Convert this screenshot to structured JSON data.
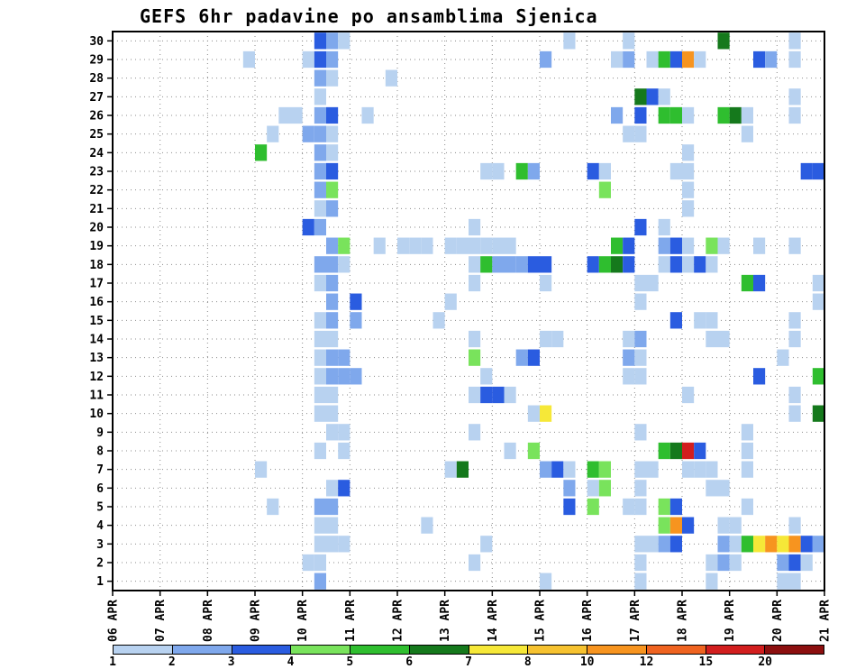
{
  "title": "GEFS 6hr padavine po ansamblima Sjenica",
  "chart_data": {
    "type": "heatmap",
    "model": "GEFS",
    "station": "Sjenica",
    "interval_hours": 6,
    "ensemble_members": 30,
    "time_steps": 60,
    "steps_per_day": 4,
    "grid": "dotted",
    "legend_position": "bottom",
    "x_tick_labels": [
      "06 APR",
      "07 APR",
      "08 APR",
      "09 APR",
      "10 APR",
      "11 APR",
      "12 APR",
      "13 APR",
      "14 APR",
      "15 APR",
      "16 APR",
      "17 APR",
      "18 APR",
      "19 APR",
      "20 APR",
      "21 APR"
    ],
    "colorbar": {
      "labels": [
        "1",
        "2",
        "3",
        "4",
        "5",
        "6",
        "7",
        "8",
        "10",
        "12",
        "15",
        "20"
      ],
      "colors": [
        "#b8d2f0",
        "#7fa8ec",
        "#2a5ce0",
        "#79e35c",
        "#2fbe2f",
        "#15791c",
        "#f6e838",
        "#f6c230",
        "#f7941f",
        "#ef6320",
        "#d21e1e",
        "#8c0f0f"
      ]
    },
    "cells": [
      [
        30,
        17,
        3
      ],
      [
        30,
        18,
        2
      ],
      [
        30,
        19,
        1
      ],
      [
        30,
        38,
        1
      ],
      [
        30,
        43,
        1
      ],
      [
        30,
        51,
        6
      ],
      [
        30,
        57,
        1
      ],
      [
        29,
        11,
        1
      ],
      [
        29,
        16,
        1
      ],
      [
        29,
        17,
        3
      ],
      [
        29,
        18,
        2
      ],
      [
        29,
        36,
        2
      ],
      [
        29,
        42,
        1
      ],
      [
        29,
        43,
        2
      ],
      [
        29,
        45,
        1
      ],
      [
        29,
        46,
        5
      ],
      [
        29,
        47,
        3
      ],
      [
        29,
        48,
        9
      ],
      [
        29,
        49,
        1
      ],
      [
        29,
        54,
        3
      ],
      [
        29,
        55,
        2
      ],
      [
        29,
        57,
        1
      ],
      [
        28,
        17,
        2
      ],
      [
        28,
        18,
        1
      ],
      [
        28,
        23,
        1
      ],
      [
        27,
        17,
        1
      ],
      [
        27,
        44,
        6
      ],
      [
        27,
        45,
        3
      ],
      [
        27,
        46,
        1
      ],
      [
        27,
        57,
        1
      ],
      [
        26,
        14,
        1
      ],
      [
        26,
        15,
        1
      ],
      [
        26,
        17,
        2
      ],
      [
        26,
        18,
        3
      ],
      [
        26,
        21,
        1
      ],
      [
        26,
        42,
        2
      ],
      [
        26,
        44,
        3
      ],
      [
        26,
        46,
        5
      ],
      [
        26,
        47,
        5
      ],
      [
        26,
        48,
        1
      ],
      [
        26,
        51,
        5
      ],
      [
        26,
        52,
        6
      ],
      [
        26,
        53,
        1
      ],
      [
        26,
        57,
        1
      ],
      [
        25,
        13,
        1
      ],
      [
        25,
        16,
        2
      ],
      [
        25,
        17,
        2
      ],
      [
        25,
        18,
        1
      ],
      [
        25,
        43,
        1
      ],
      [
        25,
        44,
        1
      ],
      [
        25,
        53,
        1
      ],
      [
        24,
        12,
        5
      ],
      [
        24,
        17,
        2
      ],
      [
        24,
        18,
        1
      ],
      [
        24,
        48,
        1
      ],
      [
        23,
        17,
        2
      ],
      [
        23,
        18,
        3
      ],
      [
        23,
        31,
        1
      ],
      [
        23,
        32,
        1
      ],
      [
        23,
        34,
        5
      ],
      [
        23,
        35,
        2
      ],
      [
        23,
        40,
        3
      ],
      [
        23,
        41,
        1
      ],
      [
        23,
        47,
        1
      ],
      [
        23,
        48,
        1
      ],
      [
        23,
        58,
        3
      ],
      [
        23,
        59,
        3
      ],
      [
        22,
        17,
        2
      ],
      [
        22,
        18,
        4
      ],
      [
        22,
        41,
        4
      ],
      [
        22,
        48,
        1
      ],
      [
        21,
        17,
        1
      ],
      [
        21,
        18,
        2
      ],
      [
        21,
        48,
        1
      ],
      [
        20,
        16,
        3
      ],
      [
        20,
        17,
        2
      ],
      [
        20,
        30,
        1
      ],
      [
        20,
        44,
        3
      ],
      [
        20,
        46,
        1
      ],
      [
        19,
        18,
        2
      ],
      [
        19,
        19,
        4
      ],
      [
        19,
        22,
        1
      ],
      [
        19,
        24,
        1
      ],
      [
        19,
        25,
        1
      ],
      [
        19,
        26,
        1
      ],
      [
        19,
        28,
        1
      ],
      [
        19,
        29,
        1
      ],
      [
        19,
        30,
        1
      ],
      [
        19,
        31,
        1
      ],
      [
        19,
        32,
        1
      ],
      [
        19,
        33,
        1
      ],
      [
        19,
        42,
        5
      ],
      [
        19,
        43,
        3
      ],
      [
        19,
        46,
        2
      ],
      [
        19,
        47,
        3
      ],
      [
        19,
        48,
        1
      ],
      [
        19,
        50,
        4
      ],
      [
        19,
        51,
        1
      ],
      [
        19,
        54,
        1
      ],
      [
        19,
        57,
        1
      ],
      [
        18,
        17,
        2
      ],
      [
        18,
        18,
        2
      ],
      [
        18,
        19,
        1
      ],
      [
        18,
        30,
        1
      ],
      [
        18,
        31,
        5
      ],
      [
        18,
        32,
        2
      ],
      [
        18,
        33,
        2
      ],
      [
        18,
        34,
        2
      ],
      [
        18,
        35,
        3
      ],
      [
        18,
        36,
        3
      ],
      [
        18,
        40,
        3
      ],
      [
        18,
        41,
        5
      ],
      [
        18,
        42,
        6
      ],
      [
        18,
        43,
        3
      ],
      [
        18,
        46,
        1
      ],
      [
        18,
        47,
        3
      ],
      [
        18,
        48,
        1
      ],
      [
        18,
        49,
        3
      ],
      [
        18,
        50,
        1
      ],
      [
        17,
        17,
        1
      ],
      [
        17,
        18,
        2
      ],
      [
        17,
        30,
        1
      ],
      [
        17,
        36,
        1
      ],
      [
        17,
        44,
        1
      ],
      [
        17,
        45,
        1
      ],
      [
        17,
        53,
        5
      ],
      [
        17,
        54,
        3
      ],
      [
        17,
        59,
        1
      ],
      [
        16,
        18,
        2
      ],
      [
        16,
        20,
        3
      ],
      [
        16,
        28,
        1
      ],
      [
        16,
        44,
        1
      ],
      [
        16,
        59,
        1
      ],
      [
        15,
        17,
        1
      ],
      [
        15,
        18,
        2
      ],
      [
        15,
        20,
        2
      ],
      [
        15,
        27,
        1
      ],
      [
        15,
        47,
        3
      ],
      [
        15,
        49,
        1
      ],
      [
        15,
        50,
        1
      ],
      [
        15,
        57,
        1
      ],
      [
        14,
        17,
        1
      ],
      [
        14,
        18,
        1
      ],
      [
        14,
        30,
        1
      ],
      [
        14,
        36,
        1
      ],
      [
        14,
        37,
        1
      ],
      [
        14,
        43,
        1
      ],
      [
        14,
        44,
        2
      ],
      [
        14,
        50,
        1
      ],
      [
        14,
        51,
        1
      ],
      [
        14,
        57,
        1
      ],
      [
        13,
        17,
        1
      ],
      [
        13,
        18,
        2
      ],
      [
        13,
        19,
        2
      ],
      [
        13,
        30,
        4
      ],
      [
        13,
        34,
        2
      ],
      [
        13,
        35,
        3
      ],
      [
        13,
        43,
        2
      ],
      [
        13,
        44,
        1
      ],
      [
        13,
        56,
        1
      ],
      [
        12,
        17,
        1
      ],
      [
        12,
        18,
        2
      ],
      [
        12,
        19,
        2
      ],
      [
        12,
        20,
        2
      ],
      [
        12,
        31,
        1
      ],
      [
        12,
        43,
        1
      ],
      [
        12,
        44,
        1
      ],
      [
        12,
        54,
        3
      ],
      [
        12,
        59,
        5
      ],
      [
        11,
        17,
        1
      ],
      [
        11,
        18,
        1
      ],
      [
        11,
        30,
        1
      ],
      [
        11,
        31,
        3
      ],
      [
        11,
        32,
        3
      ],
      [
        11,
        33,
        1
      ],
      [
        11,
        48,
        1
      ],
      [
        11,
        57,
        1
      ],
      [
        10,
        17,
        1
      ],
      [
        10,
        18,
        1
      ],
      [
        10,
        35,
        1
      ],
      [
        10,
        36,
        7
      ],
      [
        10,
        57,
        1
      ],
      [
        10,
        59,
        6
      ],
      [
        9,
        18,
        1
      ],
      [
        9,
        19,
        1
      ],
      [
        9,
        30,
        1
      ],
      [
        9,
        44,
        1
      ],
      [
        9,
        53,
        1
      ],
      [
        8,
        17,
        1
      ],
      [
        8,
        19,
        1
      ],
      [
        8,
        33,
        1
      ],
      [
        8,
        35,
        4
      ],
      [
        8,
        46,
        5
      ],
      [
        8,
        47,
        6
      ],
      [
        8,
        48,
        11
      ],
      [
        8,
        49,
        3
      ],
      [
        8,
        53,
        1
      ],
      [
        7,
        12,
        1
      ],
      [
        7,
        28,
        1
      ],
      [
        7,
        29,
        6
      ],
      [
        7,
        36,
        2
      ],
      [
        7,
        37,
        3
      ],
      [
        7,
        38,
        1
      ],
      [
        7,
        40,
        5
      ],
      [
        7,
        41,
        4
      ],
      [
        7,
        44,
        1
      ],
      [
        7,
        45,
        1
      ],
      [
        7,
        48,
        1
      ],
      [
        7,
        49,
        1
      ],
      [
        7,
        50,
        1
      ],
      [
        7,
        53,
        1
      ],
      [
        6,
        18,
        1
      ],
      [
        6,
        19,
        3
      ],
      [
        6,
        38,
        2
      ],
      [
        6,
        40,
        1
      ],
      [
        6,
        41,
        4
      ],
      [
        6,
        44,
        1
      ],
      [
        6,
        50,
        1
      ],
      [
        6,
        51,
        1
      ],
      [
        5,
        13,
        1
      ],
      [
        5,
        17,
        2
      ],
      [
        5,
        18,
        2
      ],
      [
        5,
        38,
        3
      ],
      [
        5,
        40,
        4
      ],
      [
        5,
        43,
        1
      ],
      [
        5,
        44,
        1
      ],
      [
        5,
        46,
        4
      ],
      [
        5,
        47,
        3
      ],
      [
        5,
        53,
        1
      ],
      [
        4,
        17,
        1
      ],
      [
        4,
        18,
        1
      ],
      [
        4,
        26,
        1
      ],
      [
        4,
        46,
        4
      ],
      [
        4,
        47,
        9
      ],
      [
        4,
        48,
        3
      ],
      [
        4,
        51,
        1
      ],
      [
        4,
        52,
        1
      ],
      [
        4,
        57,
        1
      ],
      [
        3,
        17,
        1
      ],
      [
        3,
        18,
        1
      ],
      [
        3,
        19,
        1
      ],
      [
        3,
        31,
        1
      ],
      [
        3,
        44,
        1
      ],
      [
        3,
        45,
        1
      ],
      [
        3,
        46,
        2
      ],
      [
        3,
        47,
        3
      ],
      [
        3,
        51,
        2
      ],
      [
        3,
        52,
        1
      ],
      [
        3,
        53,
        5
      ],
      [
        3,
        54,
        7
      ],
      [
        3,
        55,
        9
      ],
      [
        3,
        56,
        7
      ],
      [
        3,
        57,
        9
      ],
      [
        3,
        58,
        3
      ],
      [
        3,
        59,
        2
      ],
      [
        2,
        16,
        1
      ],
      [
        2,
        17,
        1
      ],
      [
        2,
        30,
        1
      ],
      [
        2,
        44,
        1
      ],
      [
        2,
        50,
        1
      ],
      [
        2,
        51,
        2
      ],
      [
        2,
        52,
        1
      ],
      [
        2,
        56,
        2
      ],
      [
        2,
        57,
        3
      ],
      [
        2,
        58,
        1
      ],
      [
        1,
        17,
        2
      ],
      [
        1,
        36,
        1
      ],
      [
        1,
        44,
        1
      ],
      [
        1,
        50,
        1
      ],
      [
        1,
        56,
        1
      ],
      [
        1,
        57,
        1
      ]
    ]
  }
}
